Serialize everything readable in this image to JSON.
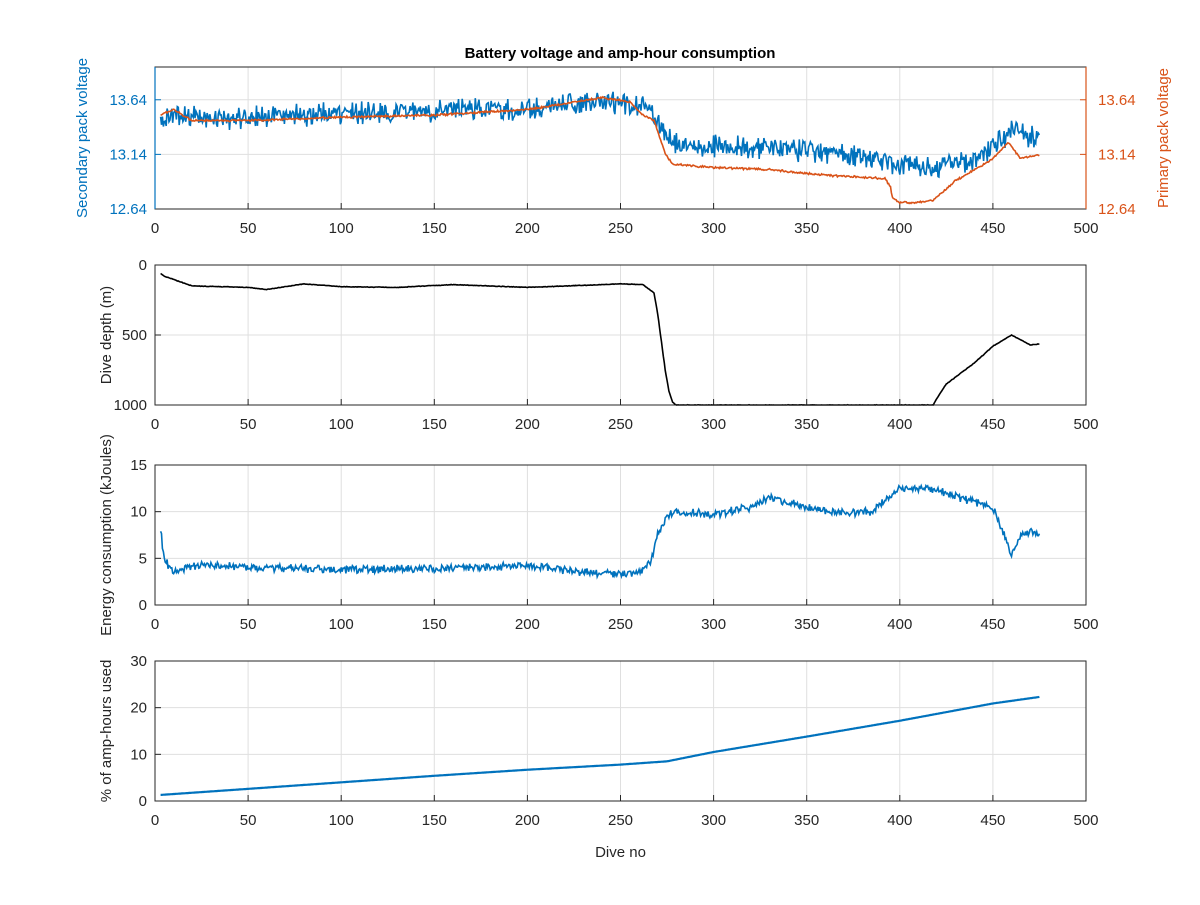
{
  "title": "Battery voltage and amp-hour consumption",
  "colors": {
    "blue": "#0072BD",
    "orange": "#D95319",
    "black": "#000000",
    "axis": "#262626",
    "grid": "#dfdfdf"
  },
  "chart_data": [
    {
      "type": "line",
      "title": "Battery voltage and amp-hour consumption",
      "xlabel": "",
      "ylabel_left": "Secondary pack voltage",
      "ylabel_right": "Primary pack voltage",
      "xlim": [
        0,
        500
      ],
      "xticks": [
        0,
        50,
        100,
        150,
        200,
        250,
        300,
        350,
        400,
        450,
        500
      ],
      "ylim": [
        12.64,
        13.94
      ],
      "yticks_left": [
        12.64,
        13.14,
        13.64
      ],
      "yticks_right": [
        12.64,
        13.14,
        13.64
      ],
      "grid": true,
      "series": [
        {
          "axis": "left",
          "color": "#0072BD",
          "noise": 0.22,
          "x": [
            3,
            10,
            20,
            40,
            60,
            80,
            100,
            130,
            160,
            200,
            230,
            250,
            262,
            268,
            272,
            276,
            280,
            300,
            320,
            340,
            370,
            385,
            390,
            395,
            400,
            410,
            420,
            430,
            440,
            450,
            460,
            470,
            475
          ],
          "y": [
            13.45,
            13.5,
            13.48,
            13.47,
            13.5,
            13.5,
            13.52,
            13.52,
            13.54,
            13.56,
            13.6,
            13.62,
            13.58,
            13.5,
            13.38,
            13.3,
            13.25,
            13.22,
            13.2,
            13.18,
            13.15,
            13.12,
            13.1,
            13.05,
            13.05,
            13.02,
            13.0,
            13.05,
            13.1,
            13.2,
            13.35,
            13.3,
            13.3
          ]
        },
        {
          "axis": "right",
          "color": "#D95319",
          "noise": 0.02,
          "x": [
            3,
            10,
            20,
            50,
            100,
            150,
            200,
            240,
            255,
            262,
            268,
            270,
            272,
            274,
            276,
            278,
            300,
            330,
            360,
            380,
            392,
            395,
            396,
            400,
            410,
            418,
            430,
            450,
            458,
            465,
            475
          ],
          "y": [
            13.5,
            13.55,
            13.45,
            13.45,
            13.48,
            13.5,
            13.55,
            13.66,
            13.62,
            13.5,
            13.45,
            13.35,
            13.25,
            13.15,
            13.1,
            13.05,
            13.02,
            13.0,
            12.95,
            12.93,
            12.92,
            12.84,
            12.74,
            12.7,
            12.7,
            12.72,
            12.9,
            13.1,
            13.25,
            13.1,
            13.14
          ]
        }
      ]
    },
    {
      "type": "line",
      "title": "",
      "xlabel": "",
      "ylabel": "Dive depth (m)",
      "xlim": [
        0,
        500
      ],
      "xticks": [
        0,
        50,
        100,
        150,
        200,
        250,
        300,
        350,
        400,
        450,
        500
      ],
      "ylim": [
        0,
        1000
      ],
      "y_reversed": true,
      "yticks": [
        0,
        500,
        1000
      ],
      "grid": true,
      "series": [
        {
          "color": "#000000",
          "noise": 4,
          "x": [
            3,
            5,
            20,
            50,
            60,
            80,
            100,
            130,
            160,
            200,
            230,
            250,
            262,
            268,
            270,
            272,
            274,
            276,
            278,
            280,
            300,
            350,
            400,
            410,
            418,
            420,
            425,
            430,
            440,
            450,
            460,
            470,
            475
          ],
          "y": [
            60,
            80,
            150,
            160,
            175,
            135,
            155,
            160,
            140,
            160,
            145,
            135,
            140,
            200,
            350,
            550,
            750,
            900,
            980,
            1000,
            1000,
            1000,
            1000,
            1000,
            1000,
            950,
            850,
            800,
            700,
            580,
            500,
            570,
            565
          ]
        }
      ]
    },
    {
      "type": "line",
      "title": "",
      "xlabel": "",
      "ylabel": "Energy consumption (kJoules)",
      "xlim": [
        0,
        500
      ],
      "xticks": [
        0,
        50,
        100,
        150,
        200,
        250,
        300,
        350,
        400,
        450,
        500
      ],
      "ylim": [
        0,
        15
      ],
      "yticks": [
        0,
        5,
        10,
        15
      ],
      "grid": true,
      "series": [
        {
          "color": "#0072BD",
          "noise": 0.9,
          "x": [
            3,
            5,
            8,
            12,
            18,
            30,
            60,
            100,
            150,
            200,
            230,
            250,
            262,
            266,
            270,
            275,
            280,
            300,
            320,
            330,
            350,
            370,
            385,
            390,
            400,
            420,
            440,
            450,
            455,
            460,
            465,
            470,
            475
          ],
          "y": [
            8,
            5,
            4,
            3.5,
            4.2,
            4.2,
            4.0,
            3.8,
            3.9,
            4.2,
            3.5,
            3.3,
            3.6,
            4.5,
            7.5,
            9.5,
            10,
            9.7,
            10.5,
            11.5,
            10.5,
            9.8,
            10,
            10.8,
            12.5,
            12.3,
            11,
            10.5,
            8,
            5.5,
            7.5,
            8,
            7.5
          ]
        }
      ]
    },
    {
      "type": "line",
      "title": "",
      "xlabel": "Dive no",
      "ylabel": "% of amp-hours used",
      "xlim": [
        0,
        500
      ],
      "xticks": [
        0,
        50,
        100,
        150,
        200,
        250,
        300,
        350,
        400,
        450,
        500
      ],
      "ylim": [
        0,
        30
      ],
      "yticks": [
        0,
        10,
        20,
        30
      ],
      "grid": true,
      "series": [
        {
          "color": "#0072BD",
          "noise": 0,
          "x": [
            3,
            50,
            100,
            150,
            200,
            250,
            275,
            300,
            350,
            400,
            450,
            475
          ],
          "y": [
            1.3,
            2.6,
            4.0,
            5.4,
            6.7,
            7.8,
            8.5,
            10.5,
            13.8,
            17.2,
            20.9,
            22.3
          ]
        }
      ]
    }
  ]
}
